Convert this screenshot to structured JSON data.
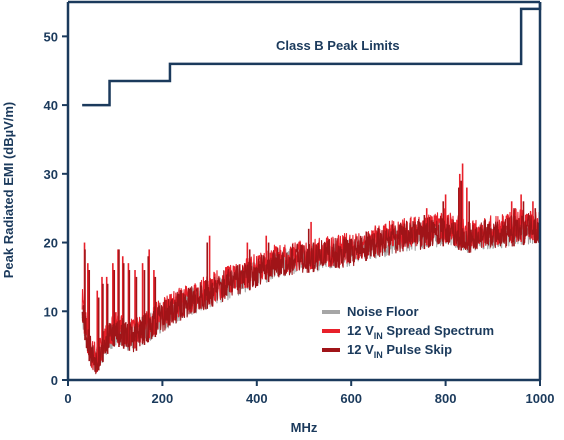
{
  "chart_data": {
    "type": "line",
    "title": "",
    "xlabel": "MHz",
    "ylabel": "Peak Radiated EMI (dBµV/m)",
    "xlim": [
      0,
      1000
    ],
    "ylim": [
      0,
      55
    ],
    "x_ticks": [
      "0",
      "200",
      "400",
      "600",
      "800",
      "1000"
    ],
    "y_ticks": [
      "0",
      "10",
      "20",
      "30",
      "40",
      "50"
    ],
    "grid": false,
    "legend_position": "bottom-right",
    "colors": {
      "axis": "#1b3a5c",
      "limit": "#1b3a5c",
      "noise_floor": "#a6a6a6",
      "spread_spectrum": "#e8202a",
      "pulse_skip": "#a01418"
    },
    "limit_line": {
      "name": "Class B Peak Limits",
      "steps": [
        {
          "x0": 30,
          "x1": 88,
          "y": 40
        },
        {
          "x0": 88,
          "x1": 216,
          "y": 43.5
        },
        {
          "x0": 216,
          "x1": 960,
          "y": 46
        },
        {
          "x0": 960,
          "x1": 1000,
          "y": 54
        }
      ]
    },
    "legend": [
      {
        "key": "noise_floor",
        "label_main": "Noise Floor",
        "label_sub": "",
        "label_rest": ""
      },
      {
        "key": "spread_spectrum",
        "label_main": "12 V",
        "label_sub": "IN",
        "label_rest": " Spread Spectrum"
      },
      {
        "key": "pulse_skip",
        "label_main": "12 V",
        "label_sub": "IN",
        "label_rest": " Pulse Skip"
      }
    ],
    "series": [
      {
        "key": "noise_floor",
        "envelope_x": [
          30,
          40,
          50,
          60,
          70,
          80,
          100,
          120,
          140,
          160,
          200,
          250,
          300,
          350,
          400,
          450,
          500,
          550,
          600,
          650,
          700,
          750,
          800,
          850,
          900,
          950,
          1000
        ],
        "envelope_low": [
          8,
          4,
          1.5,
          1,
          2,
          3.5,
          5,
          4.5,
          4,
          5,
          7,
          9,
          10.5,
          12,
          13.5,
          15,
          15.5,
          16,
          16.5,
          17.5,
          18.5,
          19,
          19.5,
          18.5,
          19,
          19.5,
          20
        ],
        "envelope_high": [
          13,
          8,
          5,
          5,
          6,
          7,
          9,
          8.5,
          8,
          9,
          11,
          13,
          14.5,
          16,
          17.5,
          19,
          19.5,
          20,
          20.5,
          21.5,
          22.5,
          23,
          23.5,
          22,
          22.5,
          23,
          23.5
        ]
      },
      {
        "key": "spread_spectrum",
        "envelope_x": [
          30,
          40,
          50,
          60,
          70,
          80,
          100,
          120,
          140,
          160,
          200,
          250,
          300,
          350,
          400,
          450,
          500,
          550,
          600,
          650,
          700,
          750,
          800,
          850,
          900,
          950,
          1000
        ],
        "envelope_low": [
          9,
          4.5,
          1.5,
          1,
          2.5,
          4,
          5.5,
          5,
          4.5,
          5.5,
          7.5,
          9.5,
          11,
          12.5,
          14,
          15.5,
          16,
          16.5,
          17,
          18,
          19,
          19.5,
          20,
          19,
          19.5,
          20,
          20.5
        ],
        "envelope_high": [
          14,
          9,
          6,
          5.5,
          6.5,
          8,
          10,
          9.5,
          9,
          10,
          12,
          14,
          15.5,
          17,
          18.5,
          20,
          20.5,
          21,
          21.5,
          22.5,
          23.5,
          24,
          25,
          23.5,
          24,
          25,
          25
        ],
        "spikes": [
          [
            35,
            20
          ],
          [
            42,
            17
          ],
          [
            62,
            13
          ],
          [
            72,
            15
          ],
          [
            82,
            15
          ],
          [
            95,
            17
          ],
          [
            106,
            19
          ],
          [
            116,
            18
          ],
          [
            128,
            17
          ],
          [
            142,
            16
          ],
          [
            158,
            17
          ],
          [
            172,
            19
          ],
          [
            182,
            16
          ],
          [
            300,
            21
          ],
          [
            380,
            20
          ],
          [
            420,
            21
          ],
          [
            515,
            23
          ],
          [
            760,
            25
          ],
          [
            800,
            27
          ],
          [
            830,
            30
          ],
          [
            836,
            31.5
          ],
          [
            845,
            28
          ],
          [
            940,
            26
          ],
          [
            960,
            27
          ],
          [
            985,
            26
          ]
        ]
      },
      {
        "key": "pulse_skip",
        "envelope_x": [
          30,
          40,
          50,
          60,
          70,
          80,
          100,
          120,
          140,
          160,
          200,
          250,
          300,
          350,
          400,
          450,
          500,
          550,
          600,
          650,
          700,
          750,
          800,
          850,
          900,
          950,
          1000
        ],
        "envelope_low": [
          8.5,
          4,
          1.5,
          0.8,
          2,
          3.5,
          5,
          4.5,
          4,
          5,
          7,
          9,
          10.5,
          12,
          13.5,
          15,
          15.5,
          16,
          16.5,
          17.5,
          18.5,
          19,
          19.5,
          18.5,
          19,
          19.5,
          20
        ],
        "envelope_high": [
          14,
          9,
          6,
          5,
          6,
          7.5,
          9.5,
          9,
          8.5,
          9.5,
          11.5,
          13.5,
          15,
          16.5,
          18,
          19.5,
          20,
          20.5,
          21,
          22,
          23,
          23.5,
          24,
          23,
          23.5,
          24,
          24.5
        ],
        "spikes": [
          [
            36,
            19
          ],
          [
            45,
            16
          ],
          [
            65,
            12
          ],
          [
            74,
            14
          ],
          [
            84,
            14
          ],
          [
            98,
            16
          ],
          [
            108,
            19
          ],
          [
            118,
            17
          ],
          [
            130,
            16
          ],
          [
            145,
            15
          ],
          [
            162,
            16
          ],
          [
            170,
            18
          ],
          [
            185,
            15
          ],
          [
            295,
            20
          ],
          [
            385,
            19
          ],
          [
            425,
            20
          ],
          [
            510,
            22
          ],
          [
            520,
            20
          ],
          [
            755,
            24
          ],
          [
            795,
            26
          ],
          [
            828,
            28
          ],
          [
            833,
            29
          ],
          [
            850,
            26
          ],
          [
            945,
            25
          ],
          [
            965,
            26
          ],
          [
            990,
            25
          ]
        ]
      }
    ]
  }
}
